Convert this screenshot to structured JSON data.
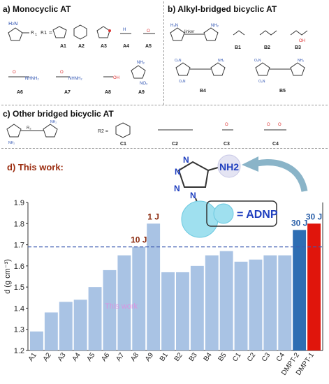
{
  "panels": {
    "a": {
      "title": "a) Monocyclic AT",
      "r_eq": "R1 =",
      "labels": [
        "A1",
        "A2",
        "A3",
        "A4",
        "A5",
        "A6",
        "A7",
        "A8",
        "A9"
      ]
    },
    "b": {
      "title": "b) Alkyl-bridged bicyclic AT",
      "linker": "linker",
      "labels": [
        "B1",
        "B2",
        "B3",
        "B4",
        "B5"
      ]
    },
    "c": {
      "title": "c) Other bridged bicyclic AT",
      "r_eq": "R2 =",
      "labels": [
        "C1",
        "C2",
        "C3",
        "C4"
      ]
    },
    "d": {
      "title": "d) This work:"
    }
  },
  "molecule": {
    "nh2": "NH2",
    "legend": "= ADNP",
    "n_atoms": [
      "N",
      "N",
      "N",
      "N"
    ]
  },
  "colors": {
    "bar_light": "#a9c3e4",
    "bar_dmpt2": "#2e6eb3",
    "bar_dmpt1": "#e0150c",
    "label_dark": "#8b2a0e",
    "label_blue": "#2a5fa8"
  },
  "chart_data": {
    "type": "bar",
    "ylabel": "d (g cm⁻³)",
    "ylim": [
      1.2,
      1.9
    ],
    "yticks": [
      "1.2",
      "1.3",
      "1.4",
      "1.5",
      "1.6",
      "1.7",
      "1.8",
      "1.9"
    ],
    "reference_line": 1.69,
    "categories": [
      "A1",
      "A2",
      "A3",
      "A4",
      "A5",
      "A6",
      "A7",
      "A8",
      "A9",
      "B1",
      "B2",
      "B3",
      "B4",
      "B5",
      "C1",
      "C2",
      "C3",
      "C4",
      "DMPT-2",
      "DMPT-1"
    ],
    "values": [
      1.29,
      1.38,
      1.43,
      1.44,
      1.5,
      1.58,
      1.65,
      1.69,
      1.8,
      1.57,
      1.57,
      1.6,
      1.65,
      1.67,
      1.62,
      1.63,
      1.65,
      1.65,
      1.77,
      1.8
    ],
    "annotations": [
      {
        "category": "A8",
        "text": "10 J"
      },
      {
        "category": "A9",
        "text": "1 J"
      },
      {
        "category": "DMPT-2",
        "text": "30 J"
      },
      {
        "category": "DMPT-1",
        "text": "30 J"
      }
    ],
    "watermark": "This work"
  }
}
